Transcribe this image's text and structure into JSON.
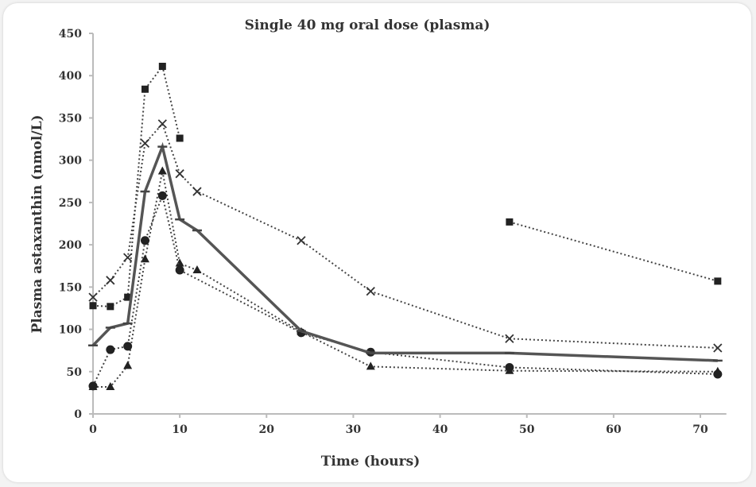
{
  "chart_data": {
    "type": "line",
    "title": "Single 40 mg oral dose (plasma)",
    "xlabel": "Time (hours)",
    "ylabel": "Plasma astaxanthin (nmol/L)",
    "xlim": [
      0,
      73
    ],
    "ylim": [
      0,
      450
    ],
    "xticks": [
      0,
      10,
      20,
      30,
      40,
      50,
      60,
      70
    ],
    "yticks": [
      0,
      50,
      100,
      150,
      200,
      250,
      300,
      350,
      400,
      450
    ],
    "grid": false,
    "series": [
      {
        "marker": "square",
        "style": "dotted",
        "points": [
          [
            0,
            128
          ],
          [
            2,
            127
          ],
          [
            4,
            138
          ],
          [
            6,
            384
          ],
          [
            8,
            411
          ],
          [
            10,
            326
          ]
        ],
        "points2": [
          [
            48,
            227
          ],
          [
            72,
            157
          ]
        ]
      },
      {
        "marker": "x",
        "style": "dotted",
        "points": [
          [
            0,
            138
          ],
          [
            2,
            158
          ],
          [
            4,
            185
          ],
          [
            6,
            320
          ],
          [
            8,
            343
          ],
          [
            10,
            284
          ],
          [
            12,
            263
          ],
          [
            24,
            205
          ],
          [
            32,
            145
          ],
          [
            48,
            89
          ],
          [
            72,
            78
          ]
        ]
      },
      {
        "marker": "triangle",
        "style": "dotted",
        "points": [
          [
            0,
            32
          ],
          [
            2,
            32
          ],
          [
            4,
            57
          ],
          [
            6,
            183
          ],
          [
            8,
            287
          ],
          [
            10,
            178
          ],
          [
            12,
            170
          ],
          [
            24,
            97
          ],
          [
            32,
            56
          ],
          [
            48,
            51
          ],
          [
            72,
            50
          ]
        ]
      },
      {
        "marker": "circle",
        "style": "dotted",
        "points": [
          [
            0,
            33
          ],
          [
            2,
            76
          ],
          [
            4,
            80
          ],
          [
            6,
            205
          ],
          [
            8,
            258
          ],
          [
            10,
            170
          ],
          [
            24,
            96
          ],
          [
            32,
            73
          ],
          [
            48,
            55
          ],
          [
            72,
            47
          ]
        ]
      },
      {
        "marker": "dash",
        "style": "solid",
        "points": [
          [
            0,
            81
          ],
          [
            2,
            102
          ],
          [
            4,
            107
          ],
          [
            6,
            263
          ],
          [
            8,
            316
          ],
          [
            10,
            230
          ],
          [
            12,
            217
          ],
          [
            24,
            98
          ],
          [
            32,
            72
          ],
          [
            48,
            72
          ],
          [
            72,
            63
          ]
        ]
      }
    ]
  }
}
